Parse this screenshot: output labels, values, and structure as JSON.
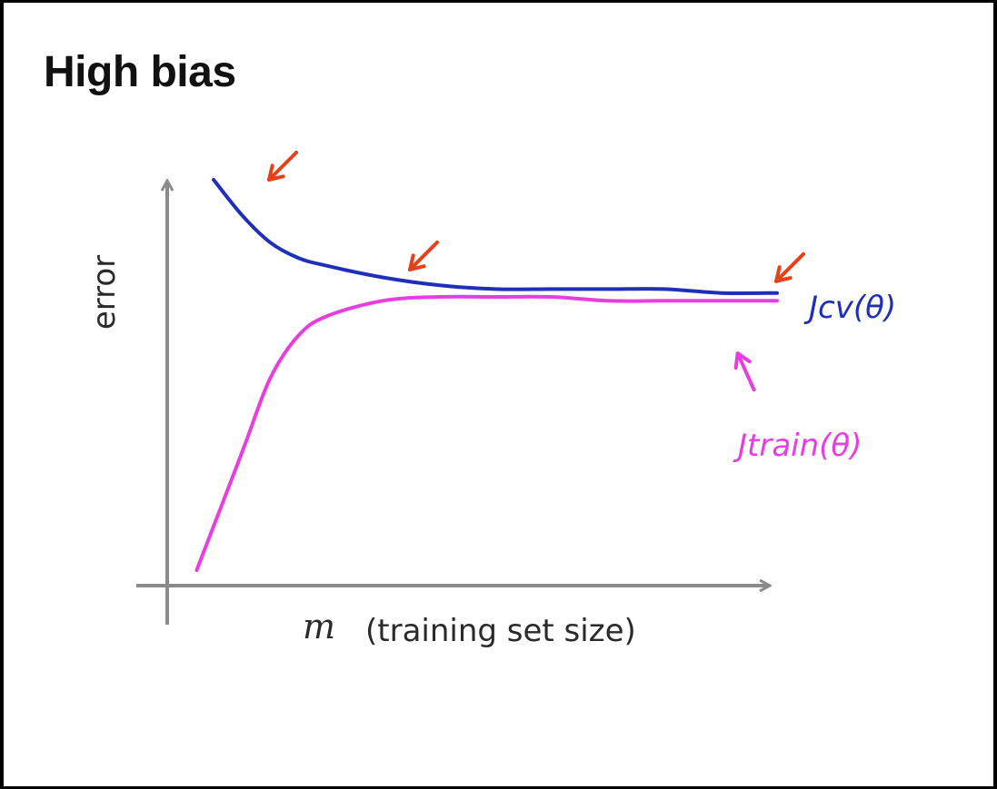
{
  "slide": {
    "title": "High bias"
  },
  "chart_data": {
    "type": "line",
    "title": "High bias",
    "xlabel_var": "m",
    "xlabel": "(training set size)",
    "ylabel": "error",
    "grid": false,
    "axis_ticks": false,
    "xlim": [
      0,
      1
    ],
    "ylim": [
      0,
      1
    ],
    "colors": {
      "cv": "#1f2fb8",
      "train": "#e83ee0",
      "arrows": "#e8401a",
      "axes": "#8a8a8a"
    },
    "series": [
      {
        "name": "Jcv(θ)",
        "x": [
          0.0,
          0.05,
          0.1,
          0.15,
          0.2,
          0.3,
          0.4,
          0.5,
          0.6,
          0.7,
          0.8,
          0.9,
          1.0
        ],
        "y": [
          1.0,
          0.91,
          0.84,
          0.8,
          0.78,
          0.75,
          0.73,
          0.72,
          0.72,
          0.72,
          0.72,
          0.71,
          0.71
        ]
      },
      {
        "name": "Jtrain(θ)",
        "x": [
          0.0,
          0.05,
          0.1,
          0.15,
          0.2,
          0.3,
          0.4,
          0.5,
          0.6,
          0.7,
          0.8,
          0.9,
          1.0
        ],
        "y": [
          0.0,
          0.3,
          0.49,
          0.6,
          0.65,
          0.69,
          0.7,
          0.7,
          0.7,
          0.69,
          0.69,
          0.69,
          0.69
        ]
      }
    ],
    "annotations": [
      {
        "type": "arrow",
        "x": 0.05,
        "y": 1.0
      },
      {
        "type": "arrow",
        "x": 0.3,
        "y": 0.77
      },
      {
        "type": "arrow",
        "x": 0.95,
        "y": 0.74
      },
      {
        "type": "arrow",
        "x": 0.93,
        "y": 0.66
      }
    ]
  }
}
